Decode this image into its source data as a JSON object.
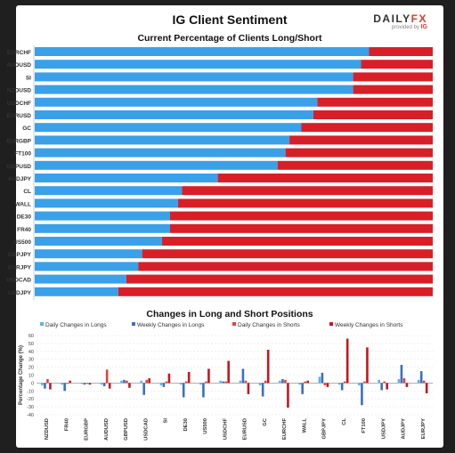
{
  "header": {
    "title": "IG Client Sentiment",
    "logo_text_a": "DAILY",
    "logo_text_b": "FX",
    "logo_sub": "provided by",
    "logo_sub_brand": "IG"
  },
  "colors": {
    "long": "#3aa0e8",
    "short": "#d81f27",
    "daily_long": "#5ab4ec",
    "weekly_long": "#3b6fc4",
    "daily_short": "#e2403f",
    "weekly_short": "#c21821"
  },
  "chart_data": [
    {
      "type": "bar",
      "orientation": "horizontal",
      "stacked": true,
      "title": "Current Percentage of Clients Long/Short",
      "categories": [
        "EURCHF",
        "AUDUSD",
        "SI",
        "NZDUSD",
        "USDCHF",
        "EURUSD",
        "GC",
        "EURGBP",
        "FT100",
        "GBPUSD",
        "AUDJPY",
        "CL",
        "WALL",
        "DE30",
        "FR40",
        "US500",
        "GBPJPY",
        "EURJPY",
        "USDCAD",
        "USDJPY"
      ],
      "series": [
        {
          "name": "Long",
          "values": [
            84,
            82,
            80,
            80,
            71,
            70,
            67,
            64,
            63,
            61,
            46,
            37,
            36,
            34,
            34,
            32,
            27,
            26,
            23,
            21
          ]
        },
        {
          "name": "Short",
          "values": [
            16,
            18,
            20,
            20,
            29,
            30,
            33,
            36,
            37,
            39,
            54,
            63,
            64,
            66,
            66,
            68,
            73,
            74,
            77,
            79
          ]
        }
      ],
      "xlim": [
        0,
        100
      ]
    },
    {
      "type": "bar",
      "title": "Changes in Long and Short Positions",
      "ylabel": "Percentage Change (%)",
      "ylim": [
        -40,
        60
      ],
      "yticks": [
        -40,
        -30,
        -20,
        -10,
        0,
        10,
        20,
        30,
        40,
        50,
        60
      ],
      "categories": [
        "NZDUSD",
        "FR40",
        "EURGBP",
        "AUDUSD",
        "GBPUSD",
        "USDCAD",
        "SI",
        "DE30",
        "US500",
        "USDCHF",
        "EURUSD",
        "GC",
        "EURCHF",
        "WALL",
        "GBPJPY",
        "CL",
        "FT100",
        "USDJPY",
        "AUDJPY",
        "EURJPY"
      ],
      "series": [
        {
          "name": "Daily Changes in Longs",
          "values": [
            -3,
            -2,
            -1,
            -2,
            3,
            3,
            -3,
            -2,
            -2,
            3,
            3,
            -3,
            3,
            -2,
            8,
            -2,
            -3,
            4,
            5,
            4
          ]
        },
        {
          "name": "Weekly Changes in Longs",
          "values": [
            -7,
            -10,
            -2,
            -4,
            4,
            -15,
            -5,
            -18,
            -18,
            2,
            18,
            -17,
            5,
            -14,
            13,
            -9,
            -28,
            -9,
            23,
            15
          ]
        },
        {
          "name": "Daily Changes in Shorts",
          "values": [
            5,
            -1,
            -1,
            17,
            3,
            4,
            2,
            2,
            2,
            2,
            3,
            3,
            4,
            2,
            -3,
            2,
            2,
            2,
            6,
            3
          ]
        },
        {
          "name": "Weekly Changes in Shorts",
          "values": [
            -8,
            3,
            -2,
            -7,
            -6,
            6,
            12,
            14,
            18,
            28,
            -14,
            42,
            -31,
            3,
            -5,
            56,
            45,
            -8,
            -5,
            -13
          ]
        }
      ]
    }
  ]
}
